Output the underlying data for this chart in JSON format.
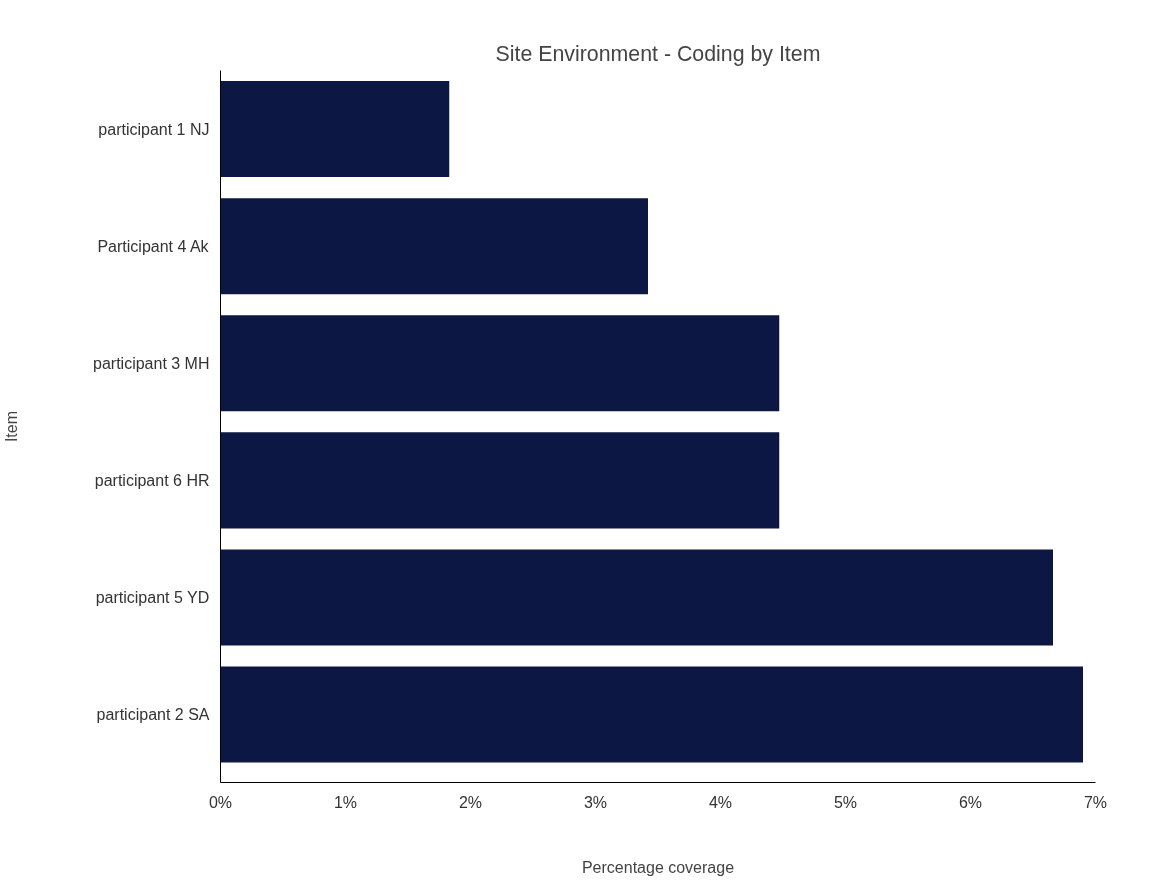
{
  "chart_data": {
    "type": "bar",
    "orientation": "horizontal",
    "title": "Site Environment - Coding by Item",
    "xlabel": "Percentage coverage",
    "ylabel": "Item",
    "categories": [
      "participant 1 NJ",
      "Participant 4 Ak",
      "participant 3 MH",
      "participant 6 HR",
      "participant 5 YD",
      "participant 2 SA"
    ],
    "values": [
      1.83,
      3.42,
      4.47,
      4.47,
      6.66,
      6.9
    ],
    "color": "#0c1744",
    "xlim": [
      0,
      7
    ],
    "xticks": [
      {
        "value": 0,
        "label": "0%"
      },
      {
        "value": 1,
        "label": "1%"
      },
      {
        "value": 2,
        "label": "2%"
      },
      {
        "value": 3,
        "label": "3%"
      },
      {
        "value": 4,
        "label": "4%"
      },
      {
        "value": 5,
        "label": "5%"
      },
      {
        "value": 6,
        "label": "6%"
      },
      {
        "value": 7,
        "label": "7%"
      }
    ],
    "grid": false
  }
}
